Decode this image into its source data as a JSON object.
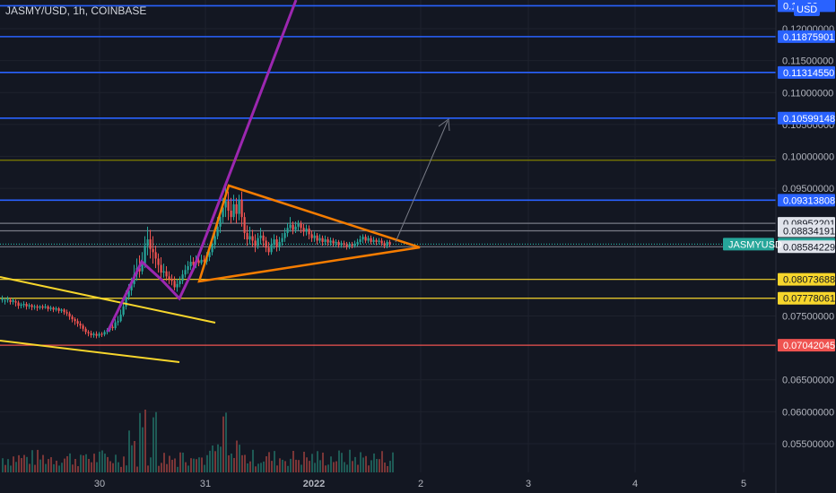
{
  "header": {
    "title": "JASMY/USD, 1h, COINBASE",
    "currency": "USD"
  },
  "chart_data": {
    "type": "candlestick",
    "symbol": "JASMYUSD",
    "ylim": [
      0.0505,
      0.1245
    ],
    "x_ticks": [
      "30",
      "31",
      "2022",
      "2",
      "3",
      "4",
      "5"
    ],
    "y_ticks": [
      "0.12000000",
      "0.11500000",
      "0.11000000",
      "0.10500000",
      "0.10000000",
      "0.09500000",
      "0.07500000",
      "0.06500000",
      "0.06000000",
      "0.05500000"
    ],
    "horizontal_levels": [
      {
        "value": 0.1236,
        "label": "0.1…36",
        "color": "#2962ff"
      },
      {
        "value": 0.11875901,
        "label": "0.11875901",
        "color": "#2962ff"
      },
      {
        "value": 0.1131455,
        "label": "0.11314550",
        "color": "#2962ff"
      },
      {
        "value": 0.10599148,
        "label": "0.10599148",
        "color": "#2962ff"
      },
      {
        "value": 0.0994,
        "label": "",
        "color": "#808000"
      },
      {
        "value": 0.09313808,
        "label": "0.09313808",
        "color": "#2962ff"
      },
      {
        "value": 0.08952201,
        "label": "0.08952201",
        "color": "#787b86"
      },
      {
        "value": 0.08834191,
        "label": "0.08834191",
        "color": "#787b86"
      },
      {
        "value": 0.08625,
        "label": "0.08625000",
        "color": "#26a69a"
      },
      {
        "value": 0.08584229,
        "label": "0.08584229",
        "color": "#787b86"
      },
      {
        "value": 0.08073688,
        "label": "0.08073688",
        "color": "#f7d62c"
      },
      {
        "value": 0.07778061,
        "label": "0.07778061",
        "color": "#f7d62c"
      },
      {
        "value": 0.07042045,
        "label": "0.07042045",
        "color": "#ef5350"
      }
    ],
    "last_price": {
      "symbol": "JASMYUSD",
      "value": "0.08625000"
    },
    "colors": {
      "up": "#26a69a",
      "down": "#ef5350",
      "trend": "#9c27b0",
      "triangle": "#f57c00",
      "channel": "#f7d62c",
      "arrow": "#787b86"
    }
  }
}
